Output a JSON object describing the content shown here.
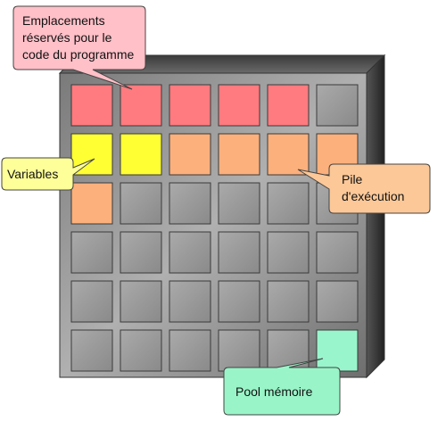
{
  "callouts": {
    "code": {
      "line1": "Emplacements",
      "line2": "réservés pour le",
      "line3": "code du programme",
      "fill": "#ffc0c8"
    },
    "variables": {
      "line1": "Variables",
      "fill": "#ffff99"
    },
    "stack": {
      "line1": "Pile",
      "line2": "d'exécution",
      "fill": "#fcc898"
    },
    "pool": {
      "line1": "Pool mémoire",
      "fill": "#99f5c8"
    }
  },
  "memory_grid": {
    "rows": 6,
    "columns": 6,
    "cells": [
      [
        "code",
        "code",
        "code",
        "code",
        "code",
        "free"
      ],
      [
        "variable",
        "variable",
        "stack",
        "stack",
        "stack",
        "stack"
      ],
      [
        "stack",
        "free",
        "free",
        "free",
        "free",
        "free"
      ],
      [
        "free",
        "free",
        "free",
        "free",
        "free",
        "free"
      ],
      [
        "free",
        "free",
        "free",
        "free",
        "free",
        "free"
      ],
      [
        "free",
        "free",
        "free",
        "free",
        "free",
        "pool"
      ]
    ]
  },
  "colors": {
    "code": "#ff7b7f",
    "variable": "#ffff33",
    "stack": "#fcb07c",
    "pool": "#99f5cc",
    "free": "#9a9a9a",
    "board_face": "#8c8c8c",
    "board_side": "#333333",
    "board_top": "#5a5a5a"
  }
}
